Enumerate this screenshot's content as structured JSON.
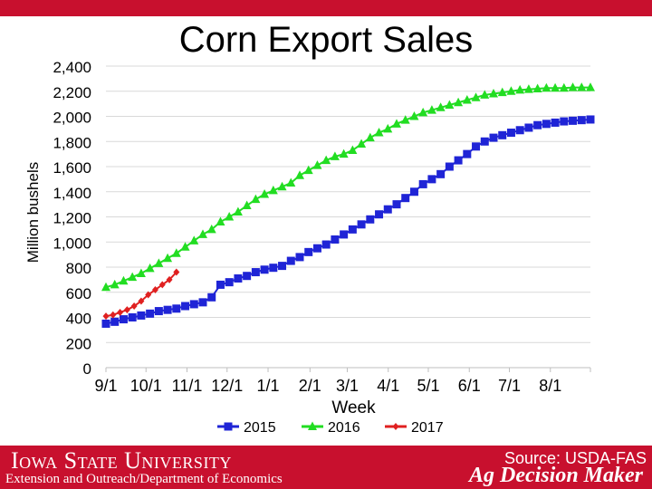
{
  "header": {
    "title": "Corn Export Sales"
  },
  "footer": {
    "university": "Iowa State University",
    "department": "Extension and Outreach/Department of Economics",
    "source": "Source: USDA-FAS",
    "brand": "Ag Decision Maker"
  },
  "colors": {
    "accent": "#c8102e",
    "s2015": "#1f24d6",
    "s2016": "#22dd22",
    "s2017": "#e02020",
    "grid": "#d9d9d9"
  },
  "chart_data": {
    "type": "line",
    "title": "Corn Export Sales",
    "xlabel": "Week",
    "ylabel": "Million bushels",
    "ylim": [
      0,
      2400
    ],
    "yticks": [
      0,
      200,
      400,
      600,
      800,
      1000,
      1200,
      1400,
      1600,
      1800,
      2000,
      2200,
      2400
    ],
    "ytick_labels": [
      "0",
      "200",
      "400",
      "600",
      "800",
      "1,000",
      "1,200",
      "1,400",
      "1,600",
      "1,800",
      "2,000",
      "2,200",
      "2,400"
    ],
    "xlim": [
      0,
      52
    ],
    "xticks": [
      {
        "week": 0,
        "label": "9/1"
      },
      {
        "week": 4.3,
        "label": "10/1"
      },
      {
        "week": 8.7,
        "label": "11/1"
      },
      {
        "week": 13,
        "label": "12/1"
      },
      {
        "week": 17.4,
        "label": "1/1"
      },
      {
        "week": 21.9,
        "label": "2/1"
      },
      {
        "week": 25.9,
        "label": "3/1"
      },
      {
        "week": 30.3,
        "label": "4/1"
      },
      {
        "week": 34.6,
        "label": "5/1"
      },
      {
        "week": 39,
        "label": "6/1"
      },
      {
        "week": 43.3,
        "label": "7/1"
      },
      {
        "week": 47.7,
        "label": "8/1"
      }
    ],
    "gridlines": true,
    "legend_position": "bottom",
    "series": [
      {
        "name": "2015",
        "marker": "square",
        "values": [
          350,
          365,
          385,
          400,
          415,
          430,
          450,
          460,
          470,
          490,
          505,
          520,
          560,
          660,
          680,
          710,
          730,
          760,
          780,
          795,
          810,
          850,
          880,
          920,
          950,
          980,
          1020,
          1060,
          1100,
          1140,
          1180,
          1220,
          1260,
          1300,
          1350,
          1400,
          1460,
          1500,
          1540,
          1600,
          1650,
          1700,
          1760,
          1800,
          1830,
          1850,
          1870,
          1890,
          1910,
          1930,
          1940,
          1950,
          1960,
          1965,
          1970,
          1975
        ]
      },
      {
        "name": "2016",
        "marker": "triangle",
        "values": [
          640,
          660,
          690,
          720,
          750,
          790,
          830,
          870,
          910,
          960,
          1010,
          1060,
          1100,
          1160,
          1200,
          1240,
          1290,
          1340,
          1380,
          1410,
          1440,
          1470,
          1530,
          1570,
          1610,
          1650,
          1680,
          1700,
          1730,
          1780,
          1830,
          1870,
          1900,
          1940,
          1970,
          2000,
          2030,
          2050,
          2070,
          2090,
          2110,
          2130,
          2150,
          2170,
          2180,
          2190,
          2200,
          2210,
          2215,
          2220,
          2225,
          2225,
          2225,
          2230,
          2230,
          2230
        ]
      },
      {
        "name": "2017",
        "marker": "diamond",
        "values": [
          410,
          420,
          440,
          460,
          490,
          530,
          580,
          620,
          660,
          700,
          760
        ]
      }
    ]
  }
}
